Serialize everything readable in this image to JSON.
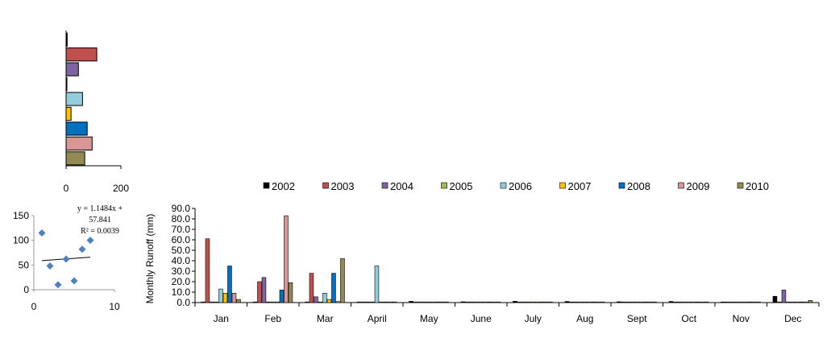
{
  "chart_data": [
    {
      "type": "bar",
      "orientation": "horizontal",
      "categories": [
        "2002",
        "2003",
        "2004",
        "2005",
        "2006",
        "2007",
        "2008",
        "2009",
        "2010"
      ],
      "values": [
        4,
        112,
        45,
        3,
        60,
        18,
        77,
        95,
        68
      ],
      "xlim": [
        0,
        200
      ],
      "xticks": [
        "0",
        "200"
      ],
      "colors": [
        "#000000",
        "#C0504D",
        "#8064A2",
        "#9BBB59",
        "#92CDDC",
        "#FFC000",
        "#0070C0",
        "#D99694",
        "#948A54"
      ]
    },
    {
      "type": "scatter",
      "points": [
        [
          1,
          115
        ],
        [
          2,
          48
        ],
        [
          3,
          10
        ],
        [
          4,
          62
        ],
        [
          5,
          18
        ],
        [
          6,
          82
        ],
        [
          7,
          100
        ]
      ],
      "xlim": [
        0,
        10
      ],
      "ylim": [
        0,
        150
      ],
      "xticks": [
        "0",
        "10"
      ],
      "yticks": [
        "0",
        "50",
        "100",
        "150"
      ],
      "trendline": {
        "slope": 1.1484,
        "intercept": 57.841
      },
      "equation_lines": [
        "y = 1.1484x +",
        "57.841",
        "R² = 0.0039"
      ],
      "marker_color": "#4F81BD"
    },
    {
      "type": "bar",
      "categories": [
        "Jan",
        "Feb",
        "Mar",
        "April",
        "May",
        "June",
        "July",
        "Aug",
        "Sept",
        "Oct",
        "Nov",
        "Dec"
      ],
      "ylabel": "Monthly  Runoff (mm)",
      "ylim": [
        0,
        90
      ],
      "yticks": [
        "0.0",
        "10.0",
        "20.0",
        "30.0",
        "40.0",
        "50.0",
        "60.0",
        "70.0",
        "80.0",
        "90.0"
      ],
      "legend_position": "top",
      "series": [
        {
          "name": "2002",
          "color": "#000000",
          "values": [
            0.5,
            0.3,
            0.3,
            0.3,
            1.2,
            0.8,
            1.3,
            1.1,
            0.8,
            1.1,
            0.6,
            6.0
          ]
        },
        {
          "name": "2003",
          "color": "#C0504D",
          "values": [
            61,
            20,
            28,
            0.3,
            0.5,
            0.4,
            0.6,
            0.5,
            0.4,
            0.6,
            0.4,
            0.5
          ]
        },
        {
          "name": "2004",
          "color": "#8064A2",
          "values": [
            0.5,
            24,
            5.5,
            0.3,
            0.4,
            0.4,
            0.5,
            0.6,
            0.4,
            0.5,
            0.4,
            12
          ]
        },
        {
          "name": "2005",
          "color": "#9BBB59",
          "values": [
            0.4,
            0.3,
            0.3,
            0.3,
            0.3,
            0.3,
            0.4,
            0.4,
            0.3,
            0.4,
            0.3,
            0.3
          ]
        },
        {
          "name": "2006",
          "color": "#92CDDC",
          "values": [
            13,
            0.5,
            9,
            35,
            0.4,
            0.4,
            0.5,
            0.5,
            0.4,
            0.5,
            0.5,
            0.5
          ]
        },
        {
          "name": "2007",
          "color": "#FFC000",
          "values": [
            9,
            0.4,
            3,
            0.3,
            0.3,
            0.3,
            0.3,
            0.3,
            0.3,
            0.3,
            0.3,
            0.3
          ]
        },
        {
          "name": "2008",
          "color": "#0070C0",
          "values": [
            35,
            12,
            28,
            0.3,
            0.5,
            0.4,
            0.5,
            0.5,
            0.4,
            0.5,
            0.4,
            0.5
          ]
        },
        {
          "name": "2009",
          "color": "#D99694",
          "values": [
            9,
            83,
            1,
            0.3,
            0.5,
            0.4,
            0.5,
            0.5,
            0.4,
            0.5,
            0.4,
            0.5
          ]
        },
        {
          "name": "2010",
          "color": "#948A54",
          "values": [
            3,
            19,
            42,
            0.3,
            0.5,
            0.5,
            0.5,
            0.5,
            0.5,
            0.5,
            0.5,
            2
          ]
        }
      ]
    }
  ]
}
